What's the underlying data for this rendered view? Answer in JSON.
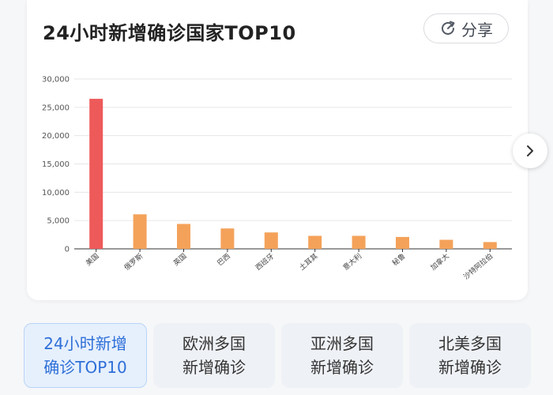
{
  "card": {
    "title": "24小时新增确诊国家TOP10",
    "share_label": "分享"
  },
  "colors": {
    "highlight_bar": "#ee5a5a",
    "bar": "#f4a25a",
    "grid": "#e6e6e6",
    "axis": "#333333",
    "active_tab_text": "#2e6fd8"
  },
  "chart_data": {
    "type": "bar",
    "title": "24小时新增确诊国家TOP10",
    "xlabel": "",
    "ylabel": "",
    "ylim": [
      0,
      30000
    ],
    "yticks": [
      "0",
      "5,000",
      "10,000",
      "15,000",
      "20,000",
      "25,000",
      "30,000"
    ],
    "ytick_values": [
      0,
      5000,
      10000,
      15000,
      20000,
      25000,
      30000
    ],
    "categories": [
      "美国",
      "俄罗斯",
      "英国",
      "巴西",
      "西班牙",
      "土耳其",
      "意大利",
      "秘鲁",
      "加拿大",
      "沙特阿拉伯"
    ],
    "values": [
      26500,
      6100,
      4400,
      3600,
      2900,
      2300,
      2300,
      2100,
      1600,
      1200
    ],
    "highlight_index": 0,
    "grid": true,
    "legend": "none"
  },
  "tabs": [
    {
      "label": "24小时新增\n确诊TOP10",
      "active": true
    },
    {
      "label": "欧洲多国\n新增确诊",
      "active": false
    },
    {
      "label": "亚洲多国\n新增确诊",
      "active": false
    },
    {
      "label": "北美多国\n新增确诊",
      "active": false
    }
  ],
  "icons": {
    "share": "refresh-share-icon",
    "next": "chevron-right-icon"
  }
}
